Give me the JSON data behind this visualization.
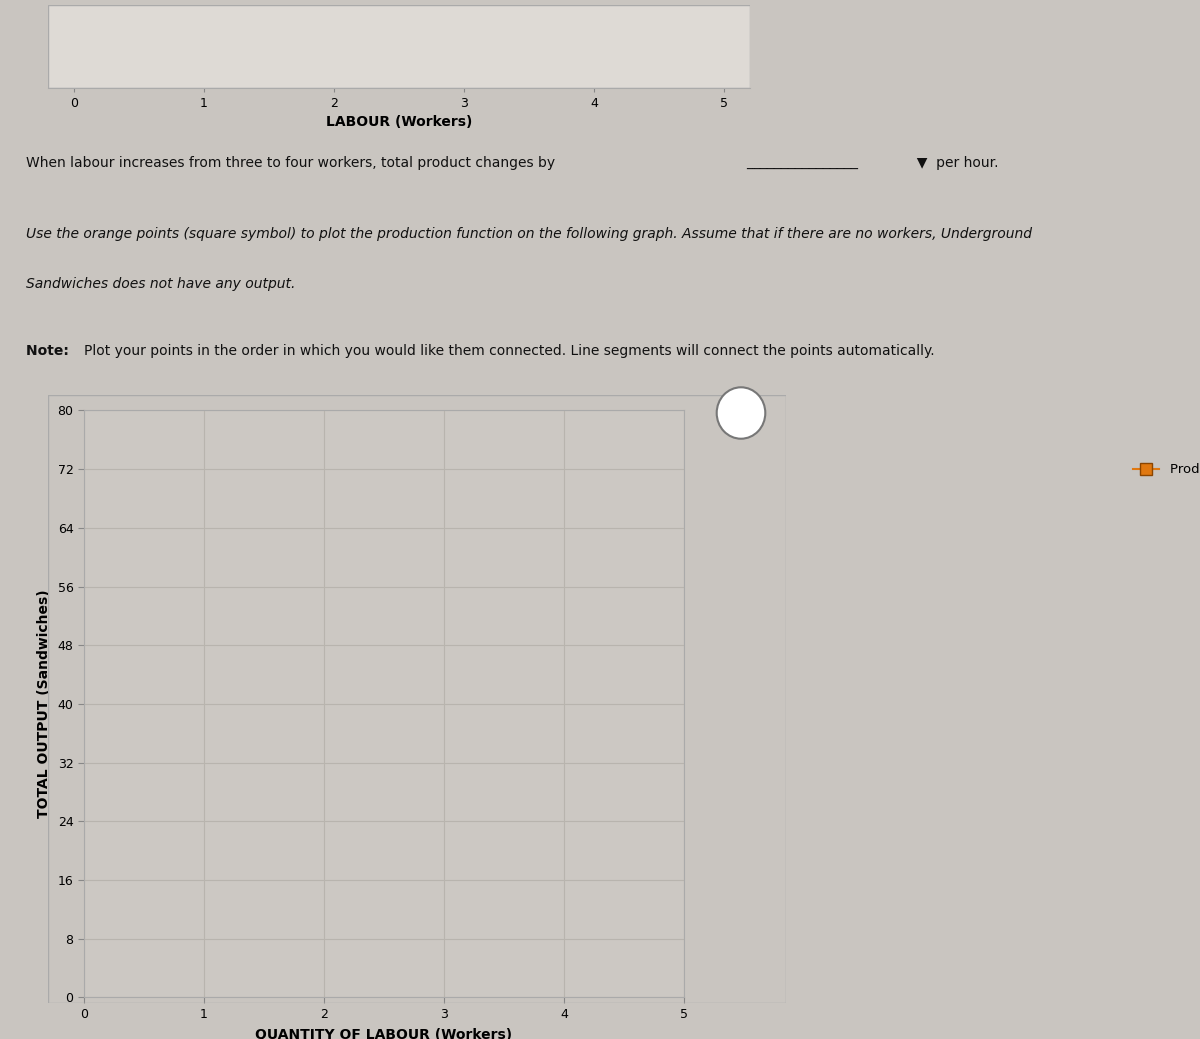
{
  "background_color": "#c9c5c0",
  "top_strip_color": "#dedad5",
  "separator_color": "#b8a860",
  "text_bg_color": "#c9c5c0",
  "top_chart": {
    "xlabel": "LABOUR (Workers)",
    "xlim": [
      -0.2,
      5.2
    ],
    "xticks": [
      0,
      1,
      2,
      3,
      4,
      5
    ],
    "bg_color": "#dedad5",
    "border_color": "#aaaaaa"
  },
  "text1": "When labour increases from three to four workers, total product changes by",
  "text1_suffix": "  ▼  per hour.",
  "text1_underline": "________________",
  "text2_line1": "Use the orange points (square symbol) to plot the production function on the following graph. Assume that if there are no workers, Underground",
  "text2_line2": "Sandwiches does not have any output.",
  "text3_bold": "Note: ",
  "text3_rest": "Plot your points in the order in which you would like them connected. Line segments will connect the points automatically.",
  "main_chart": {
    "xlabel": "QUANTITY OF LABOUR (Workers)",
    "ylabel": "TOTAL OUTPUT (Sandwiches)",
    "xlim": [
      0,
      5
    ],
    "ylim": [
      0,
      80
    ],
    "xticks": [
      0,
      1,
      2,
      3,
      4,
      5
    ],
    "yticks": [
      0,
      8,
      16,
      24,
      32,
      40,
      48,
      56,
      64,
      72,
      80
    ],
    "bg_color": "#dedad5",
    "plot_area_color": "#ccc8c3",
    "grid_color": "#b8b4ae",
    "border_color": "#aaaaaa",
    "legend_label": "Production Function",
    "legend_marker_color": "#e07810",
    "legend_marker_edge_color": "#8b4500",
    "question_mark_text": "?",
    "question_mark_color": "#555555",
    "question_mark_bg": "#ffffff"
  },
  "right_panel_color": "#c9c5c0",
  "figsize": [
    12.0,
    10.39
  ],
  "dpi": 100
}
